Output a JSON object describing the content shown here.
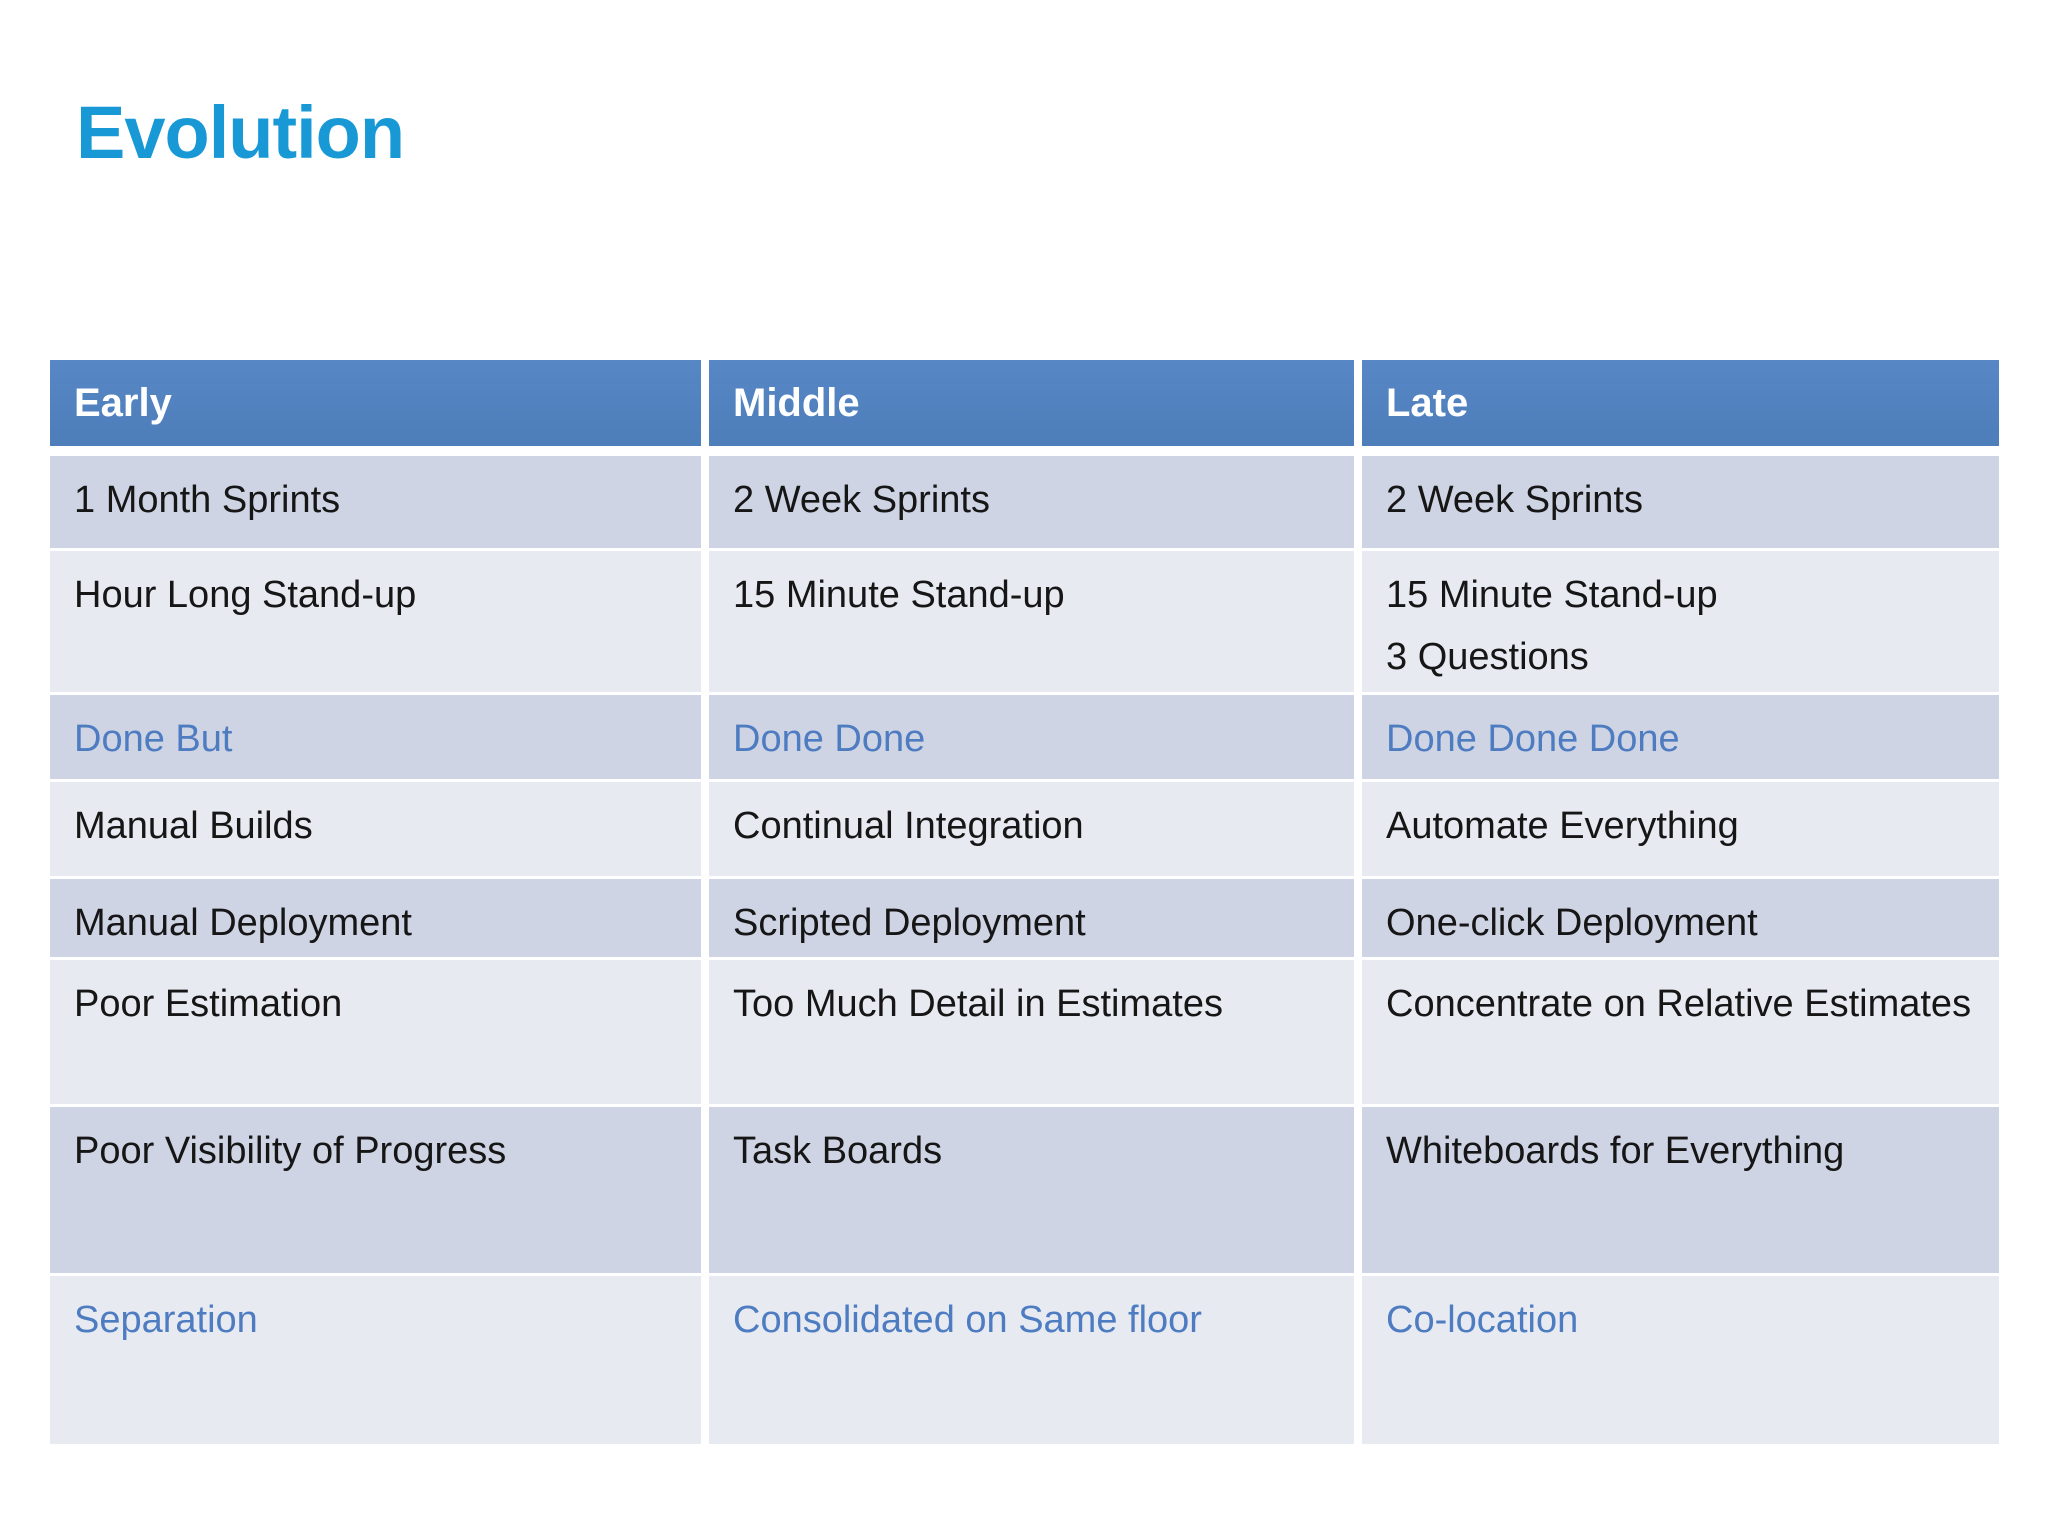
{
  "title": "Evolution",
  "colors": {
    "page_bg": "#FFFFFF",
    "title_text": "#1899D6",
    "header_bg": "#4E7FBB",
    "header_bg_top": "#5787C5",
    "header_text": "#FFFFFF",
    "row_dark_bg": "#CFD4E4",
    "row_light_bg": "#E8EAF2",
    "cell_text": "#161616",
    "accent_cell_text": "#4E7CC1"
  },
  "table": {
    "columns": [
      "Early",
      "Middle",
      "Late"
    ],
    "rows": [
      {
        "cells": [
          "1 Month Sprints",
          "2 Week Sprints",
          "2 Week Sprints"
        ],
        "highlight": false
      },
      {
        "cells": [
          "Hour Long Stand-up",
          "15 Minute Stand-up",
          "15 Minute Stand-up\n3 Questions"
        ],
        "highlight": false
      },
      {
        "cells": [
          "Done But",
          "Done Done",
          "Done Done Done"
        ],
        "highlight": true
      },
      {
        "cells": [
          "Manual Builds",
          "Continual Integration",
          "Automate Everything"
        ],
        "highlight": false
      },
      {
        "cells": [
          "Manual Deployment",
          "Scripted Deployment",
          "One-click Deployment"
        ],
        "highlight": false
      },
      {
        "cells": [
          "Poor Estimation",
          "Too Much Detail in Estimates",
          "Concentrate on Relative Estimates"
        ],
        "highlight": false
      },
      {
        "cells": [
          "Poor Visibility of Progress",
          "Task Boards",
          "Whiteboards for Everything"
        ],
        "highlight": false
      },
      {
        "cells": [
          "Separation",
          "Consolidated on Same floor",
          "Co-location"
        ],
        "highlight": true
      }
    ]
  }
}
